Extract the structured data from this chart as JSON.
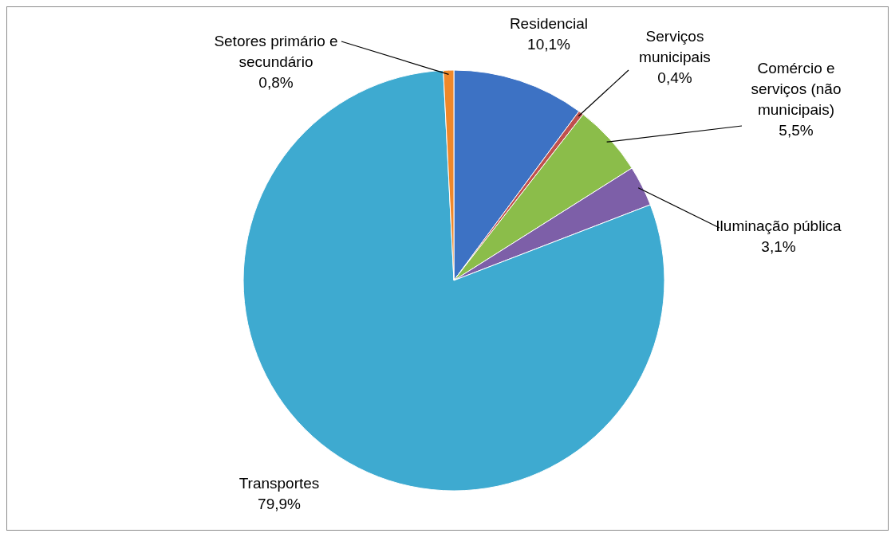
{
  "chart_data": {
    "type": "pie",
    "categories": [
      "Residencial",
      "Serviços municipais",
      "Comércio e serviços (não municipais)",
      "Iluminação pública",
      "Transportes",
      "Setores primário e secundário"
    ],
    "values": [
      10.1,
      0.4,
      5.5,
      3.1,
      79.9,
      0.8
    ],
    "value_labels": [
      "10,1%",
      "0,4%",
      "5,5%",
      "3,1%",
      "79,9%",
      "0,8%"
    ],
    "colors": [
      "#3d72c4",
      "#c0504d",
      "#8bbd4a",
      "#7d5fa8",
      "#3eaad0",
      "#f0882a"
    ]
  }
}
